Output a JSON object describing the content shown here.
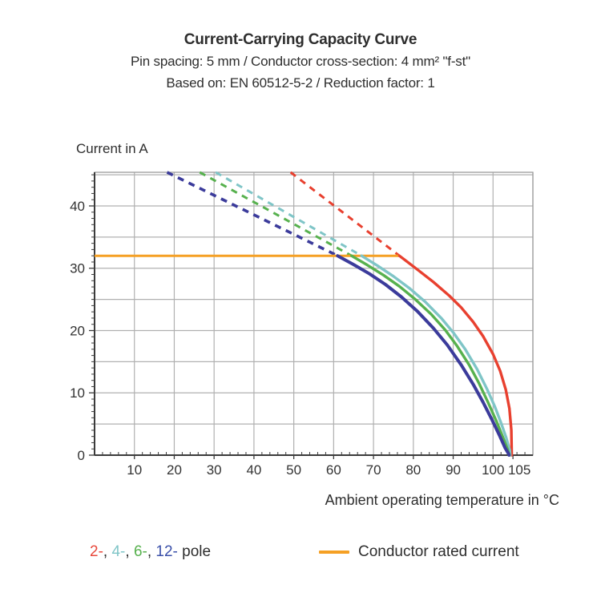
{
  "title": {
    "line1": "Current-Carrying Capacity Curve",
    "line2": "Pin spacing: 5 mm / Conductor cross-section: 4 mm² \"f-st\"",
    "line3": "Based on: EN 60512-5-2 / Reduction factor: 1"
  },
  "chart_data": {
    "type": "line",
    "title": "Current-Carrying Capacity Curve",
    "xlabel": "Ambient operating temperature in °C",
    "ylabel": "Current in A",
    "xlim": [
      0,
      110
    ],
    "ylim": [
      0,
      45.4
    ],
    "grid": true,
    "x_gridline_step": 10,
    "y_gridline_step": 5,
    "x_ticks": [
      10,
      20,
      30,
      40,
      50,
      60,
      70,
      80,
      90,
      100,
      105
    ],
    "y_ticks": [
      0,
      10,
      20,
      30,
      40
    ],
    "x_minor_step": 2,
    "y_minor_step": 1,
    "rated_current": {
      "label": "Conductor rated current",
      "value": 32,
      "x_start": 0,
      "x_end": 76.5,
      "color": "#f5a024"
    },
    "series": [
      {
        "name": "2-pole",
        "color": "#e8402f",
        "width": 3.4,
        "dash_top": [
          49.2,
          45.4
        ],
        "points": [
          [
            76.5,
            32
          ],
          [
            81,
            29.8
          ],
          [
            85,
            27.8
          ],
          [
            89,
            25.6
          ],
          [
            92,
            23.7
          ],
          [
            95,
            21.4
          ],
          [
            97.5,
            19.1
          ],
          [
            100,
            16.2
          ],
          [
            101.8,
            13.5
          ],
          [
            103.2,
            10.5
          ],
          [
            104.1,
            7.5
          ],
          [
            104.6,
            4
          ],
          [
            104.7,
            0
          ]
        ]
      },
      {
        "name": "4-pole",
        "color": "#7fc5c7",
        "width": 3.4,
        "dash_top": [
          30.4,
          45.4
        ],
        "points": [
          [
            67,
            32
          ],
          [
            71,
            30.4
          ],
          [
            75,
            28.7
          ],
          [
            79,
            26.8
          ],
          [
            83,
            24.6
          ],
          [
            87,
            22
          ],
          [
            90,
            19.7
          ],
          [
            93,
            17
          ],
          [
            96,
            13.8
          ],
          [
            98.5,
            10.6
          ],
          [
            100.5,
            7.7
          ],
          [
            102,
            5.2
          ],
          [
            103.3,
            2.8
          ],
          [
            104.2,
            0.8
          ],
          [
            104.3,
            0
          ]
        ]
      },
      {
        "name": "6-pole",
        "color": "#57b14e",
        "width": 3.4,
        "dash_top": [
          26.4,
          45.4
        ],
        "points": [
          [
            64.5,
            32
          ],
          [
            68.5,
            30.5
          ],
          [
            72.5,
            28.9
          ],
          [
            76.5,
            27.1
          ],
          [
            80.5,
            25
          ],
          [
            84.5,
            22.6
          ],
          [
            88,
            20.1
          ],
          [
            91,
            17.5
          ],
          [
            94,
            14.5
          ],
          [
            96.5,
            11.5
          ],
          [
            98.8,
            8.4
          ],
          [
            100.8,
            5.5
          ],
          [
            102.4,
            3
          ],
          [
            103.6,
            1
          ],
          [
            104.1,
            0
          ]
        ]
      },
      {
        "name": "12-pole",
        "color": "#3b3b9b",
        "width": 4,
        "dash_top": [
          18.2,
          45.4
        ],
        "points": [
          [
            61,
            32
          ],
          [
            65,
            30.6
          ],
          [
            69,
            29.1
          ],
          [
            73,
            27.4
          ],
          [
            77,
            25.4
          ],
          [
            81,
            23.1
          ],
          [
            85,
            20.4
          ],
          [
            88.5,
            17.7
          ],
          [
            92,
            14.5
          ],
          [
            95,
            11.4
          ],
          [
            97.5,
            8.5
          ],
          [
            99.8,
            5.6
          ],
          [
            101.6,
            3.2
          ],
          [
            103,
            1.2
          ],
          [
            103.9,
            0.2
          ],
          [
            104,
            0
          ]
        ]
      }
    ],
    "legend_position": "bottom"
  },
  "legend": {
    "poles": [
      {
        "text": "2-",
        "color": "#e8493c"
      },
      {
        "text": "4-",
        "color": "#7fc5c7"
      },
      {
        "text": "6-",
        "color": "#57b14e"
      },
      {
        "text": "12-",
        "color": "#3c51aa"
      }
    ],
    "separator": ", ",
    "suffix": " pole",
    "rated_label": "Conductor rated current"
  },
  "colors": {
    "text": "#2e2e2e",
    "grid": "#b0b0b0",
    "frame": "#9c9c9c",
    "axis": "#3c3c3c",
    "orange": "#f5a024"
  }
}
